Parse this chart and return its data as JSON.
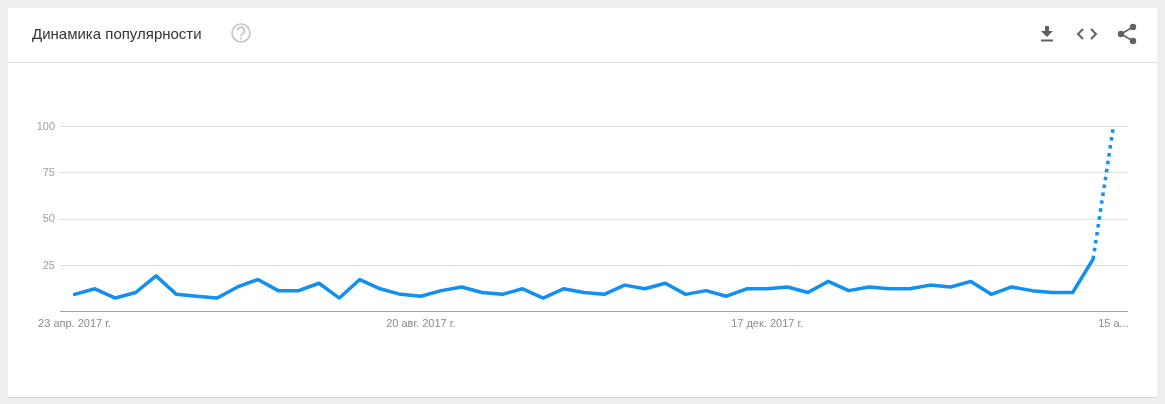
{
  "chart_data": {
    "type": "line",
    "title": "Динамика популярности",
    "x": [
      "2017-04-23",
      "2017-04-30",
      "2017-05-07",
      "2017-05-14",
      "2017-05-21",
      "2017-05-28",
      "2017-06-04",
      "2017-06-11",
      "2017-06-18",
      "2017-06-25",
      "2017-07-02",
      "2017-07-09",
      "2017-07-16",
      "2017-07-23",
      "2017-07-30",
      "2017-08-06",
      "2017-08-13",
      "2017-08-20",
      "2017-08-27",
      "2017-09-03",
      "2017-09-10",
      "2017-09-17",
      "2017-09-24",
      "2017-10-01",
      "2017-10-08",
      "2017-10-15",
      "2017-10-22",
      "2017-10-29",
      "2017-11-05",
      "2017-11-12",
      "2017-11-19",
      "2017-11-26",
      "2017-12-03",
      "2017-12-10",
      "2017-12-17",
      "2017-12-24",
      "2017-12-31",
      "2018-01-07",
      "2018-01-14",
      "2018-01-21",
      "2018-01-28",
      "2018-02-04",
      "2018-02-11",
      "2018-02-18",
      "2018-02-25",
      "2018-03-04",
      "2018-03-11",
      "2018-03-18",
      "2018-03-25",
      "2018-04-01",
      "2018-04-08"
    ],
    "series": [
      {
        "color": "#1190f0",
        "line_style": "solid",
        "values": [
          9,
          12,
          7,
          10,
          19,
          9,
          8,
          7,
          13,
          17,
          11,
          11,
          15,
          7,
          17,
          12,
          9,
          8,
          11,
          13,
          10,
          9,
          12,
          7,
          12,
          10,
          9,
          14,
          12,
          15,
          9,
          11,
          8,
          12,
          12,
          13,
          10,
          16,
          11,
          13,
          12,
          12,
          14,
          13,
          16,
          9,
          13,
          11,
          10,
          10,
          28
        ]
      },
      {
        "color": "#1190f0",
        "line_style": "dotted",
        "x": [
          "2018-04-08",
          "2018-04-15"
        ],
        "values": [
          28,
          100
        ]
      }
    ],
    "xlim": [
      "2017-04-18",
      "2018-04-20"
    ],
    "xticks": [
      {
        "value": "2017-04-23",
        "label": "23 апр. 2017 г."
      },
      {
        "value": "2017-08-20",
        "label": "20 авг. 2017 г."
      },
      {
        "value": "2017-12-17",
        "label": "17 дек. 2017 г."
      },
      {
        "value": "2018-04-15",
        "label": "15 а..."
      }
    ],
    "ylim": [
      0,
      100
    ],
    "yticks": [
      25,
      50,
      75,
      100
    ],
    "grid": "y"
  }
}
